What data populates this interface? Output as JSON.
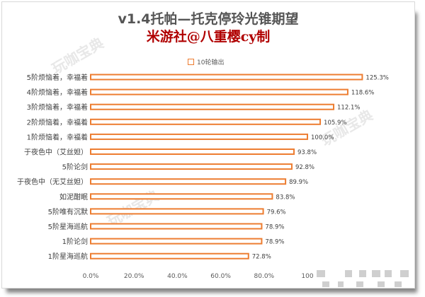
{
  "title": "v1.4托帕—托克停玲光锥期望",
  "subtitle": "米游社@八重樱cy制",
  "watermark": "玩咖宝典",
  "colors": {
    "bar": "#ed7d31",
    "title": "#555555",
    "subtitle": "#b00000"
  },
  "chart_data": {
    "type": "bar",
    "orientation": "horizontal",
    "categories": [
      "5阶烦恼着，幸福着",
      "4阶烦恼着，幸福着",
      "3阶烦恼着，幸福着",
      "2阶烦恼着，幸福着",
      "1阶烦恼着，幸福着",
      "于夜色中（艾丝妲）",
      "5阶论剑",
      "于夜色中（无艾丝妲）",
      "如泥酣眠",
      "5阶唯有沉默",
      "5阶星海巡航",
      "1阶论剑",
      "1阶星海巡航"
    ],
    "series": [
      {
        "name": "10轮输出",
        "values": [
          125.3,
          118.6,
          112.1,
          105.9,
          100.0,
          93.8,
          92.8,
          89.9,
          83.8,
          79.6,
          78.9,
          78.9,
          72.8
        ]
      }
    ],
    "data_labels": [
      "125.3%",
      "118.6%",
      "112.1%",
      "105.9%",
      "100.0%",
      "93.8%",
      "92.8%",
      "89.9%",
      "83.8%",
      "79.6%",
      "78.9%",
      "78.9%",
      "72.8%"
    ],
    "x_ticks": [
      {
        "value": 0,
        "label": "0.0%"
      },
      {
        "value": 20,
        "label": "20.0%"
      },
      {
        "value": 40,
        "label": "40.0%"
      },
      {
        "value": 60,
        "label": "60.0%"
      },
      {
        "value": 80,
        "label": "80.0%"
      },
      {
        "value": 100,
        "label": "100"
      }
    ],
    "xlim": [
      0,
      140
    ],
    "legend": "top-center",
    "grid": false,
    "xlabel": "",
    "ylabel": ""
  }
}
